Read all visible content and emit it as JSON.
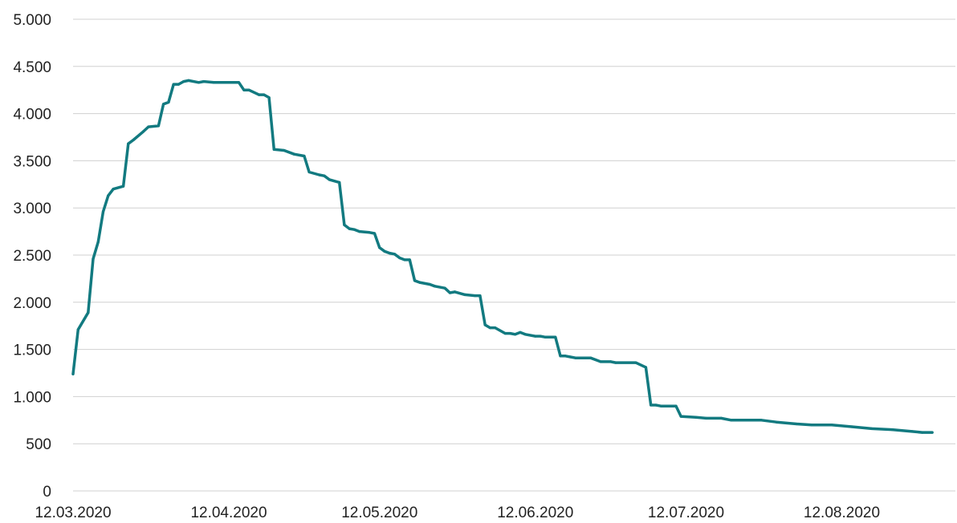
{
  "chart_data": {
    "type": "line",
    "title": "",
    "xlabel": "",
    "ylabel": "",
    "grid": true,
    "legend": "none",
    "ylim": [
      0,
      5000
    ],
    "yticks": [
      0,
      500,
      1000,
      1500,
      2000,
      2500,
      3000,
      3500,
      4000,
      4500,
      5000
    ],
    "ytick_labels": [
      "0",
      "500",
      "1.000",
      "1.500",
      "2.000",
      "2.500",
      "3.000",
      "3.500",
      "4.000",
      "4.500",
      "5.000"
    ],
    "xlim": [
      "2020-03-12",
      "2020-08-30"
    ],
    "xticks": [
      "2020-03-12",
      "2020-04-12",
      "2020-05-12",
      "2020-06-12",
      "2020-07-12",
      "2020-08-12"
    ],
    "xtick_labels": [
      "12.03.2020",
      "12.04.2020",
      "12.05.2020",
      "12.06.2020",
      "12.07.2020",
      "12.08.2020"
    ],
    "colors": {
      "series": "#127a80",
      "grid": "#d0d0d0",
      "text": "#222222"
    },
    "series": [
      {
        "points": [
          [
            "2020-03-12",
            1240
          ],
          [
            "2020-03-13",
            1710
          ],
          [
            "2020-03-15",
            1890
          ],
          [
            "2020-03-16",
            2460
          ],
          [
            "2020-03-17",
            2640
          ],
          [
            "2020-03-18",
            2960
          ],
          [
            "2020-03-19",
            3130
          ],
          [
            "2020-03-20",
            3200
          ],
          [
            "2020-03-22",
            3230
          ],
          [
            "2020-03-23",
            3680
          ],
          [
            "2020-03-24",
            3720
          ],
          [
            "2020-03-26",
            3810
          ],
          [
            "2020-03-27",
            3860
          ],
          [
            "2020-03-29",
            3870
          ],
          [
            "2020-03-30",
            4100
          ],
          [
            "2020-03-31",
            4120
          ],
          [
            "2020-04-01",
            4310
          ],
          [
            "2020-04-02",
            4310
          ],
          [
            "2020-04-03",
            4340
          ],
          [
            "2020-04-04",
            4350
          ],
          [
            "2020-04-06",
            4330
          ],
          [
            "2020-04-07",
            4340
          ],
          [
            "2020-04-09",
            4330
          ],
          [
            "2020-04-13",
            4330
          ],
          [
            "2020-04-14",
            4330
          ],
          [
            "2020-04-15",
            4250
          ],
          [
            "2020-04-16",
            4250
          ],
          [
            "2020-04-18",
            4200
          ],
          [
            "2020-04-19",
            4200
          ],
          [
            "2020-04-20",
            4170
          ],
          [
            "2020-04-21",
            3620
          ],
          [
            "2020-04-23",
            3610
          ],
          [
            "2020-04-25",
            3570
          ],
          [
            "2020-04-27",
            3550
          ],
          [
            "2020-04-28",
            3380
          ],
          [
            "2020-04-30",
            3350
          ],
          [
            "2020-05-01",
            3340
          ],
          [
            "2020-05-02",
            3300
          ],
          [
            "2020-05-04",
            3270
          ],
          [
            "2020-05-05",
            2820
          ],
          [
            "2020-05-06",
            2780
          ],
          [
            "2020-05-07",
            2770
          ],
          [
            "2020-05-08",
            2750
          ],
          [
            "2020-05-10",
            2740
          ],
          [
            "2020-05-11",
            2730
          ],
          [
            "2020-05-12",
            2580
          ],
          [
            "2020-05-13",
            2540
          ],
          [
            "2020-05-14",
            2520
          ],
          [
            "2020-05-15",
            2510
          ],
          [
            "2020-05-16",
            2470
          ],
          [
            "2020-05-17",
            2450
          ],
          [
            "2020-05-18",
            2450
          ],
          [
            "2020-05-19",
            2230
          ],
          [
            "2020-05-20",
            2210
          ],
          [
            "2020-05-22",
            2190
          ],
          [
            "2020-05-23",
            2170
          ],
          [
            "2020-05-25",
            2150
          ],
          [
            "2020-05-26",
            2100
          ],
          [
            "2020-05-27",
            2110
          ],
          [
            "2020-05-29",
            2080
          ],
          [
            "2020-05-31",
            2070
          ],
          [
            "2020-06-01",
            2070
          ],
          [
            "2020-06-02",
            1760
          ],
          [
            "2020-06-03",
            1730
          ],
          [
            "2020-06-04",
            1730
          ],
          [
            "2020-06-06",
            1670
          ],
          [
            "2020-06-07",
            1670
          ],
          [
            "2020-06-08",
            1660
          ],
          [
            "2020-06-09",
            1680
          ],
          [
            "2020-06-10",
            1660
          ],
          [
            "2020-06-12",
            1640
          ],
          [
            "2020-06-13",
            1640
          ],
          [
            "2020-06-14",
            1630
          ],
          [
            "2020-06-16",
            1630
          ],
          [
            "2020-06-17",
            1430
          ],
          [
            "2020-06-18",
            1430
          ],
          [
            "2020-06-19",
            1420
          ],
          [
            "2020-06-20",
            1410
          ],
          [
            "2020-06-23",
            1410
          ],
          [
            "2020-06-24",
            1390
          ],
          [
            "2020-06-25",
            1370
          ],
          [
            "2020-06-27",
            1370
          ],
          [
            "2020-06-28",
            1360
          ],
          [
            "2020-07-02",
            1360
          ],
          [
            "2020-07-04",
            1310
          ],
          [
            "2020-07-05",
            910
          ],
          [
            "2020-07-06",
            910
          ],
          [
            "2020-07-07",
            900
          ],
          [
            "2020-07-10",
            900
          ],
          [
            "2020-07-11",
            790
          ],
          [
            "2020-07-14",
            780
          ],
          [
            "2020-07-16",
            770
          ],
          [
            "2020-07-19",
            770
          ],
          [
            "2020-07-21",
            750
          ],
          [
            "2020-07-27",
            750
          ],
          [
            "2020-07-30",
            730
          ],
          [
            "2020-08-03",
            710
          ],
          [
            "2020-08-06",
            700
          ],
          [
            "2020-08-10",
            700
          ],
          [
            "2020-08-14",
            680
          ],
          [
            "2020-08-18",
            660
          ],
          [
            "2020-08-22",
            650
          ],
          [
            "2020-08-26",
            630
          ],
          [
            "2020-08-28",
            620
          ],
          [
            "2020-08-30",
            620
          ]
        ]
      }
    ]
  }
}
